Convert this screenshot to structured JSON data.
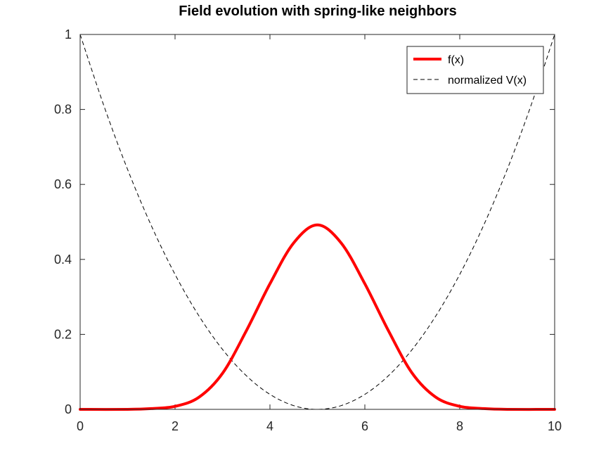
{
  "chart_data": {
    "type": "line",
    "title": "Field evolution with spring-like neighbors",
    "xlabel": "",
    "ylabel": "",
    "xlim": [
      0,
      10
    ],
    "ylim": [
      0,
      1
    ],
    "xticks": [
      0,
      2,
      4,
      6,
      8,
      10
    ],
    "xtick_labels": [
      "0",
      "2",
      "4",
      "6",
      "8",
      "10"
    ],
    "yticks": [
      0,
      0.2,
      0.4,
      0.6,
      0.8,
      1
    ],
    "ytick_labels": [
      "0",
      "0.2",
      "0.4",
      "0.6",
      "0.8",
      "1"
    ],
    "grid": false,
    "legend_position": "top-right",
    "series": [
      {
        "name": "f(x)",
        "color": "#ff0000",
        "style": "solid",
        "x": [
          0,
          1,
          1.5,
          2,
          2.5,
          3,
          3.5,
          4,
          4.5,
          5,
          5.5,
          6,
          6.5,
          7,
          7.5,
          8,
          8.5,
          9,
          10
        ],
        "y": [
          0,
          0,
          0.002,
          0.008,
          0.032,
          0.096,
          0.209,
          0.335,
          0.444,
          0.492,
          0.444,
          0.335,
          0.209,
          0.096,
          0.032,
          0.008,
          0.002,
          0,
          0
        ]
      },
      {
        "name": "normalized V(x)",
        "color": "#000000",
        "style": "dashed",
        "x": [
          0,
          0.5,
          1,
          1.5,
          2,
          2.5,
          3,
          3.5,
          4,
          4.5,
          5,
          5.5,
          6,
          6.5,
          7,
          7.5,
          8,
          8.5,
          9,
          9.5,
          10
        ],
        "y": [
          1,
          0.81,
          0.64,
          0.49,
          0.36,
          0.25,
          0.16,
          0.09,
          0.04,
          0.01,
          0,
          0.01,
          0.04,
          0.09,
          0.16,
          0.25,
          0.36,
          0.49,
          0.64,
          0.81,
          1
        ]
      }
    ]
  }
}
